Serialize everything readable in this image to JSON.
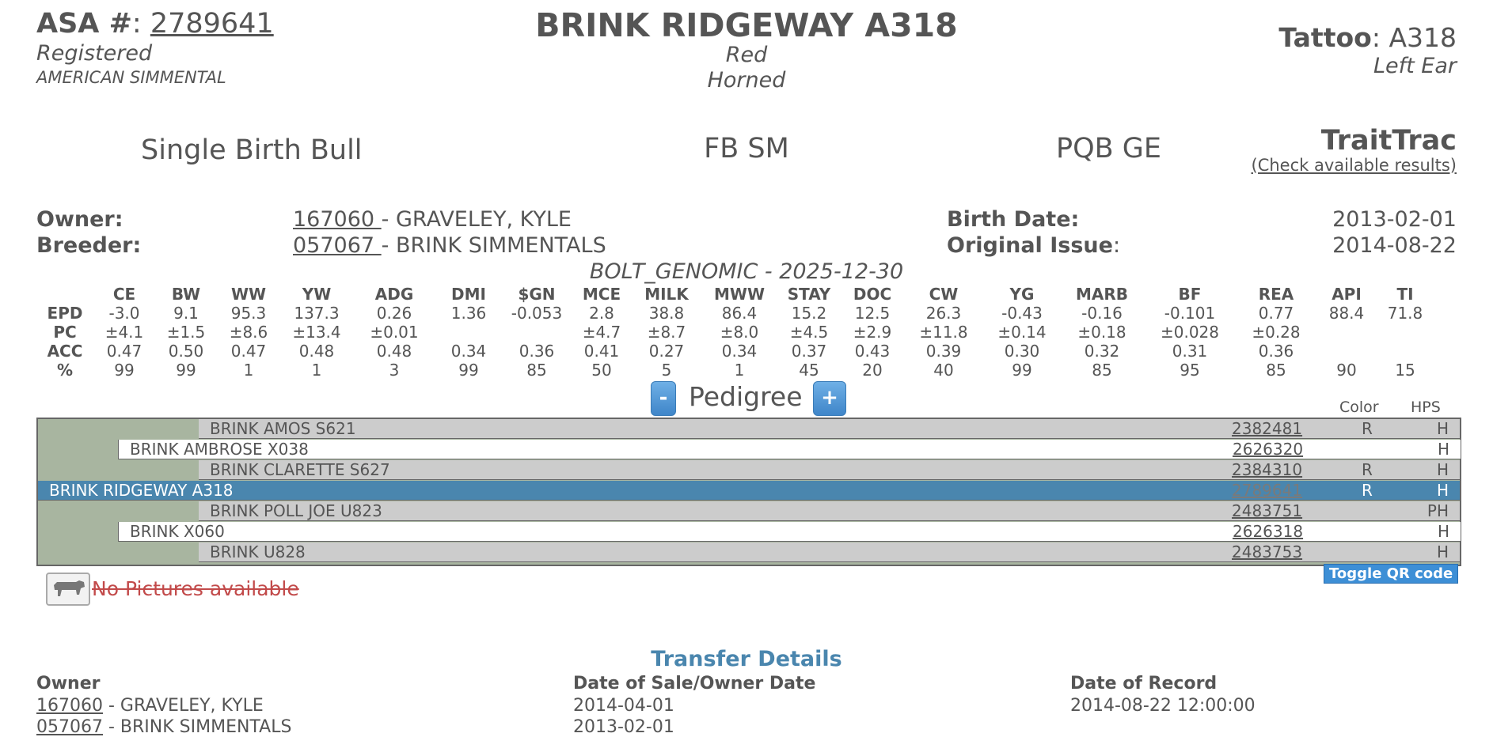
{
  "header": {
    "asa_label": "ASA #",
    "asa_number": "2789641",
    "status": "Registered",
    "breed": "AMERICAN SIMMENTAL",
    "animal_name": "BRINK RIDGEWAY A318",
    "color": "Red",
    "horn": "Horned",
    "tattoo_label": "Tattoo",
    "tattoo_value": "A318",
    "tattoo_location": "Left Ear",
    "birth_type": "Single Birth Bull",
    "herd_book": "FB SM",
    "genomic_tag": "PQB GE",
    "traittrac_title": "TraitTrac",
    "traittrac_link": "(Check available results)"
  },
  "owner": {
    "label": "Owner:",
    "id": "167060 ",
    "name": "- GRAVELEY, KYLE"
  },
  "breeder": {
    "label": "Breeder:",
    "id": "057067 ",
    "name": "- BRINK SIMMENTALS"
  },
  "birth_date": {
    "label": "Birth Date:",
    "value": "2013-02-01"
  },
  "original_issue": {
    "label": "Original Issue",
    "value": "2014-08-22"
  },
  "epd": {
    "caption": "BOLT_GENOMIC - 2025-12-30",
    "columns": [
      "CE",
      "BW",
      "WW",
      "YW",
      "ADG",
      "DMI",
      "$GN",
      "MCE",
      "MILK",
      "MWW",
      "STAY",
      "DOC",
      "CW",
      "YG",
      "MARB",
      "BF",
      "REA",
      "API",
      "TI"
    ],
    "rows": [
      {
        "label": "EPD",
        "values": [
          "-3.0",
          "9.1",
          "95.3",
          "137.3",
          "0.26",
          "1.36",
          "-0.053",
          "2.8",
          "38.8",
          "86.4",
          "15.2",
          "12.5",
          "26.3",
          "-0.43",
          "-0.16",
          "-0.101",
          "0.77",
          "88.4",
          "71.8"
        ]
      },
      {
        "label": "PC",
        "values": [
          "±4.1",
          "±1.5",
          "±8.6",
          "±13.4",
          "±0.01",
          "",
          "",
          "±4.7",
          "±8.7",
          "±8.0",
          "±4.5",
          "±2.9",
          "±11.8",
          "±0.14",
          "±0.18",
          "±0.028",
          "±0.28",
          "",
          ""
        ]
      },
      {
        "label": "ACC",
        "values": [
          "0.47",
          "0.50",
          "0.47",
          "0.48",
          "0.48",
          "0.34",
          "0.36",
          "0.41",
          "0.27",
          "0.34",
          "0.37",
          "0.43",
          "0.39",
          "0.30",
          "0.32",
          "0.31",
          "0.36",
          "",
          ""
        ]
      },
      {
        "label": "%",
        "values": [
          "99",
          "99",
          "1",
          "1",
          "3",
          "99",
          "85",
          "50",
          "5",
          "1",
          "45",
          "20",
          "40",
          "99",
          "85",
          "95",
          "85",
          "90",
          "15"
        ]
      }
    ]
  },
  "pedigree": {
    "title": "Pedigree",
    "minus": "-",
    "plus": "+",
    "color_header": "Color",
    "hps_header": "HPS",
    "rows": [
      {
        "name": "BRINK AMOS S621",
        "reg": "2382481",
        "color": "R",
        "hps": "H"
      },
      {
        "name": "BRINK AMBROSE X038",
        "reg": "2626320",
        "color": "",
        "hps": "H"
      },
      {
        "name": "BRINK CLARETTE S627",
        "reg": "2384310",
        "color": "R",
        "hps": "H"
      },
      {
        "name": "BRINK RIDGEWAY A318",
        "reg": "2789641",
        "color": "R",
        "hps": "H"
      },
      {
        "name": "BRINK POLL JOE U823",
        "reg": "2483751",
        "color": "",
        "hps": "PH"
      },
      {
        "name": "BRINK X060",
        "reg": "2626318",
        "color": "",
        "hps": "H"
      },
      {
        "name": "BRINK U828",
        "reg": "2483753",
        "color": "",
        "hps": "H"
      }
    ]
  },
  "qr_button": "Toggle QR code",
  "pictures": {
    "icon": "cow-icon",
    "text": "No Pictures available"
  },
  "transfer": {
    "title": "Transfer Details",
    "headers": [
      "Owner",
      "Date of Sale/Owner Date",
      "Date of Record"
    ],
    "rows": [
      {
        "id": "167060",
        "name": " - GRAVELEY, KYLE",
        "date": "2014-04-01",
        "record": "2014-08-22 12:00:00"
      },
      {
        "id": "057067",
        "name": " - BRINK SIMMENTALS",
        "date": "2013-02-01",
        "record": ""
      }
    ]
  },
  "colors": {
    "accent": "#4a86ae",
    "selected_row": "#4a86ae",
    "pedigree_bg": "#a8b5a0",
    "row_gray": "#cccccc",
    "button_blue": "#3d8fd6",
    "no_pics_red": "#c24a4a"
  }
}
